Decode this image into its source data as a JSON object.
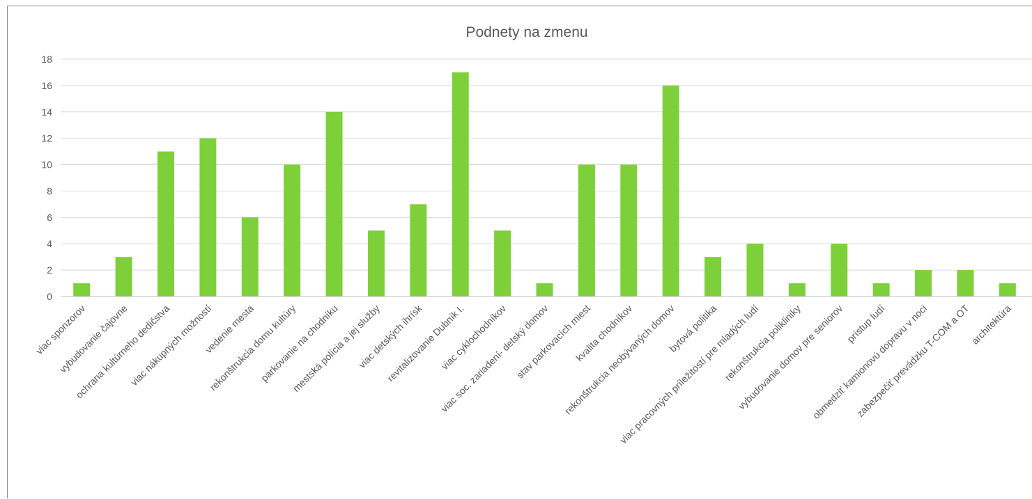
{
  "chart_data": {
    "type": "bar",
    "title": "Podnety na zmenu",
    "xlabel": "",
    "ylabel": "",
    "ylim": [
      0,
      18
    ],
    "yticks": [
      0,
      2,
      4,
      6,
      8,
      10,
      12,
      14,
      16,
      18
    ],
    "grid": true,
    "legend": "none",
    "bar_color": "#7ed03a",
    "categories": [
      "viac sponzorov",
      "vybudovanie čajovne",
      "ochrana kultúrneho dedičstva",
      "viac nákupných možností",
      "vedenie mesta",
      "rekonštrukcia domu kultúry",
      "parkovanie na chodníku",
      "mestská polícia a jej služby",
      "viac detských ihrísk",
      "revitalizovanie Dubník I.",
      "viac cyklochodníkov",
      "viac soc. zariadení- detský domov",
      "stav parkovacích miest",
      "kvalita chodníkov",
      "rekonštrukcia neobývaných domov",
      "bytová politika",
      "viac pracovných príležitostí pre mladých ludí",
      "rekonštrukcia polikliniky",
      "vybudovanie domov pre seniorov",
      "prístup ludí",
      "obmedziť kamionovú dopravu v noci",
      "zabezpečiť prevádzku T-COM a OT",
      "architektúra"
    ],
    "values": [
      1,
      3,
      11,
      12,
      6,
      10,
      14,
      5,
      7,
      17,
      5,
      1,
      10,
      10,
      16,
      3,
      4,
      1,
      4,
      1,
      2,
      2,
      1
    ]
  }
}
